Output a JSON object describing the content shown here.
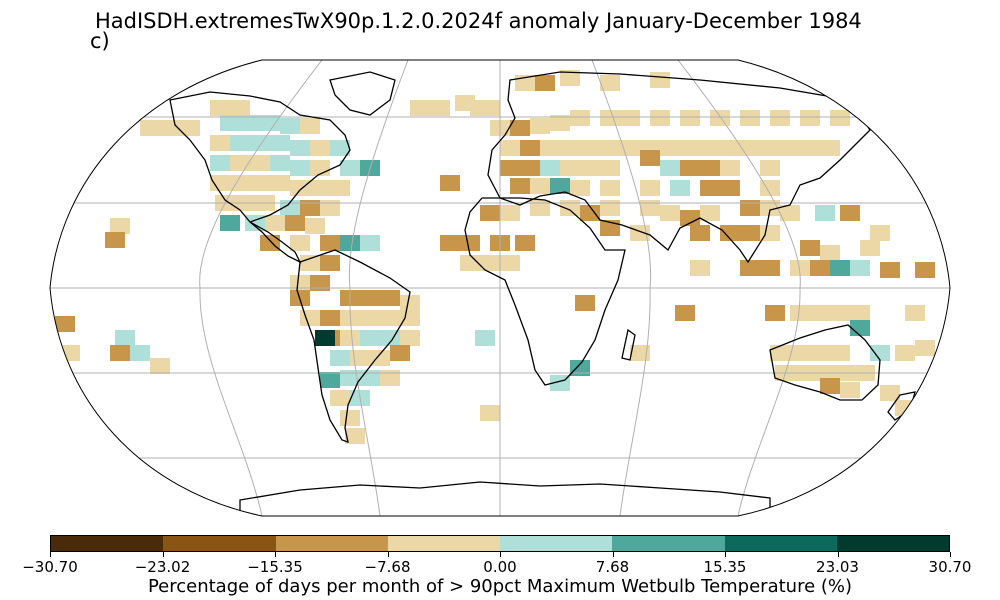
{
  "title": "HadISDH.extremesTwX90p.1.2.0.2024f anomaly January-December 1984",
  "panel_label": "c)",
  "colorbar": {
    "label": "Percentage of days per month of > 90pct Maximum Wetbulb Temperature (%)",
    "ticks": [
      "−30.70",
      "−23.02",
      "−15.35",
      "−7.68",
      "0.00",
      "7.68",
      "15.35",
      "23.03",
      "30.70"
    ],
    "colors": [
      "#4a2a08",
      "#8b5412",
      "#c8964a",
      "#ecd8a6",
      "#aedfd8",
      "#4fa89c",
      "#0c6a5c",
      "#033a30"
    ]
  },
  "map": {
    "projection": "Robinson",
    "gridlines": true,
    "cell_colors": {
      "strong_dry": "#c8964a",
      "weak_dry": "#ecd8a6",
      "weak_wet": "#aedfd8",
      "mid_wet": "#4fa89c",
      "strong_wet": "#0c6a5c",
      "extreme_wet": "#033a30"
    }
  }
}
